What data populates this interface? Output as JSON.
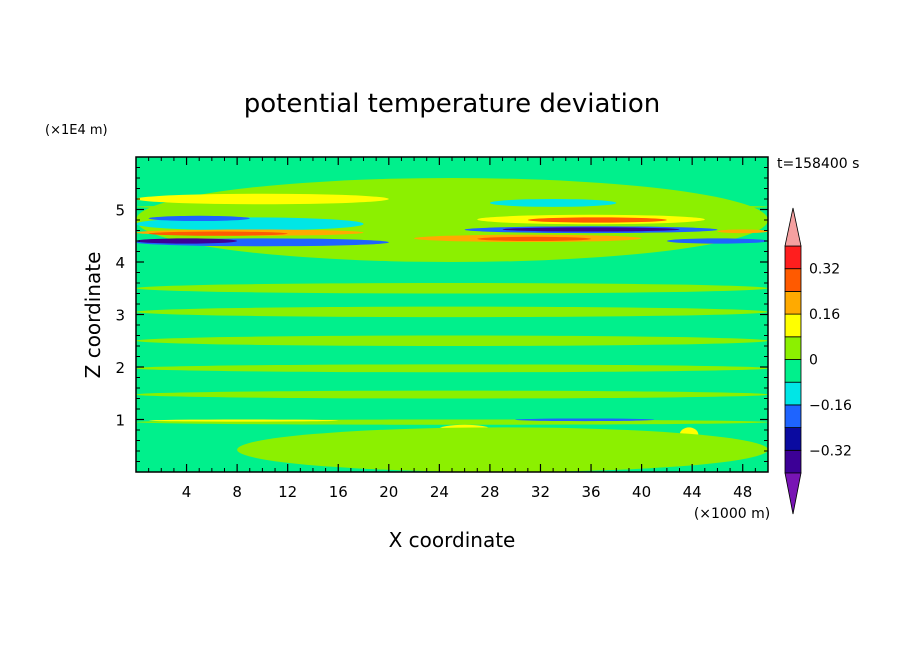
{
  "chart_data": {
    "type": "heatmap",
    "title": "potential temperature deviation",
    "xlabel": "X coordinate",
    "ylabel": "Z coordinate",
    "x_unit": "(×1000 m)",
    "y_unit": "(×1E4 m)",
    "time_label": "t=158400 s",
    "xlim": [
      0,
      50
    ],
    "ylim": [
      0,
      6
    ],
    "x_ticks": [
      4,
      8,
      12,
      16,
      20,
      24,
      28,
      32,
      36,
      40,
      44,
      48
    ],
    "x_tick_labels": [
      "4",
      "8",
      "12",
      "16",
      "20",
      "24",
      "28",
      "32",
      "36",
      "40",
      "44",
      "48"
    ],
    "y_ticks": [
      1,
      2,
      3,
      4,
      5
    ],
    "y_tick_labels": [
      "1",
      "2",
      "3",
      "4",
      "5"
    ],
    "colorbar": {
      "levels": [
        -0.4,
        -0.32,
        -0.24,
        -0.16,
        -0.08,
        0,
        0.08,
        0.16,
        0.24,
        0.32,
        0.4
      ],
      "tick_values": [
        0.32,
        0.16,
        0,
        -0.16,
        -0.32
      ],
      "tick_labels": [
        "0.32",
        "0.16",
        "0",
        "−0.16",
        "−0.32"
      ],
      "colors": [
        "#3c0096",
        "#0a0aa0",
        "#1e64ff",
        "#00e6e6",
        "#00f08c",
        "#8cf000",
        "#ffff00",
        "#ffaa00",
        "#ff5a00",
        "#ff1e1e"
      ],
      "under_color": "#7814b4",
      "over_color": "#f5a0a0"
    },
    "background_color": "#00f08c",
    "bands": [
      {
        "x0": 0,
        "x1": 50,
        "z0": 4.0,
        "z1": 5.6,
        "value": 0.04
      },
      {
        "x0": 0,
        "x1": 20,
        "z0": 5.1,
        "z1": 5.3,
        "value": 0.1
      },
      {
        "x0": 0,
        "x1": 50,
        "z0": 5.0,
        "z1": 5.1,
        "value": 0.04
      },
      {
        "x0": 0,
        "x1": 18,
        "z0": 4.6,
        "z1": 4.85,
        "value": -0.1
      },
      {
        "x0": 1,
        "x1": 9,
        "z0": 4.78,
        "z1": 4.88,
        "value": -0.22
      },
      {
        "x0": 0,
        "x1": 18,
        "z0": 4.5,
        "z1": 4.62,
        "value": 0.2
      },
      {
        "x0": 1,
        "x1": 12,
        "z0": 4.5,
        "z1": 4.58,
        "value": 0.28
      },
      {
        "x0": 0,
        "x1": 20,
        "z0": 4.3,
        "z1": 4.45,
        "value": -0.2
      },
      {
        "x0": 0,
        "x1": 8,
        "z0": 4.35,
        "z1": 4.45,
        "value": -0.34
      },
      {
        "x0": 27,
        "x1": 45,
        "z0": 4.72,
        "z1": 4.9,
        "value": 0.14
      },
      {
        "x0": 31,
        "x1": 42,
        "z0": 4.75,
        "z1": 4.85,
        "value": 0.26
      },
      {
        "x0": 28,
        "x1": 38,
        "z0": 5.05,
        "z1": 5.2,
        "value": -0.1
      },
      {
        "x0": 26,
        "x1": 46,
        "z0": 4.55,
        "z1": 4.68,
        "value": -0.18
      },
      {
        "x0": 29,
        "x1": 43,
        "z0": 4.58,
        "z1": 4.66,
        "value": -0.34
      },
      {
        "x0": 22,
        "x1": 40,
        "z0": 4.38,
        "z1": 4.52,
        "value": 0.16
      },
      {
        "x0": 27,
        "x1": 36,
        "z0": 4.4,
        "z1": 4.48,
        "value": 0.3
      },
      {
        "x0": 42,
        "x1": 50,
        "z0": 4.35,
        "z1": 4.45,
        "value": -0.2
      },
      {
        "x0": 46,
        "x1": 50,
        "z0": 4.55,
        "z1": 4.62,
        "value": 0.16
      },
      {
        "x0": 0,
        "x1": 50,
        "z0": 3.8,
        "z1": 3.95,
        "value": -0.04
      },
      {
        "x0": 0,
        "x1": 50,
        "z0": 3.4,
        "z1": 3.6,
        "value": 0.04
      },
      {
        "x0": 0,
        "x1": 50,
        "z0": 2.95,
        "z1": 3.15,
        "value": 0.04
      },
      {
        "x0": 0,
        "x1": 50,
        "z0": 2.4,
        "z1": 2.6,
        "value": 0.04
      },
      {
        "x0": 0,
        "x1": 50,
        "z0": 1.9,
        "z1": 2.05,
        "value": 0.04
      },
      {
        "x0": 0,
        "x1": 50,
        "z0": 1.4,
        "z1": 1.55,
        "value": 0.04
      },
      {
        "x0": 0,
        "x1": 50,
        "z0": 0.9,
        "z1": 1.0,
        "value": 0.04
      },
      {
        "x0": 1,
        "x1": 16,
        "z0": 0.96,
        "z1": 1.0,
        "value": 0.14
      },
      {
        "x0": 30,
        "x1": 41,
        "z0": 0.97,
        "z1": 1.02,
        "value": -0.22
      },
      {
        "x0": 24,
        "x1": 28,
        "z0": 0.74,
        "z1": 0.9,
        "value": 0.14
      },
      {
        "x0": 43,
        "x1": 44.5,
        "z0": 0.55,
        "z1": 0.85,
        "value": 0.14
      },
      {
        "x0": 8,
        "x1": 50,
        "z0": 0.0,
        "z1": 0.85,
        "value": 0.04
      }
    ]
  }
}
